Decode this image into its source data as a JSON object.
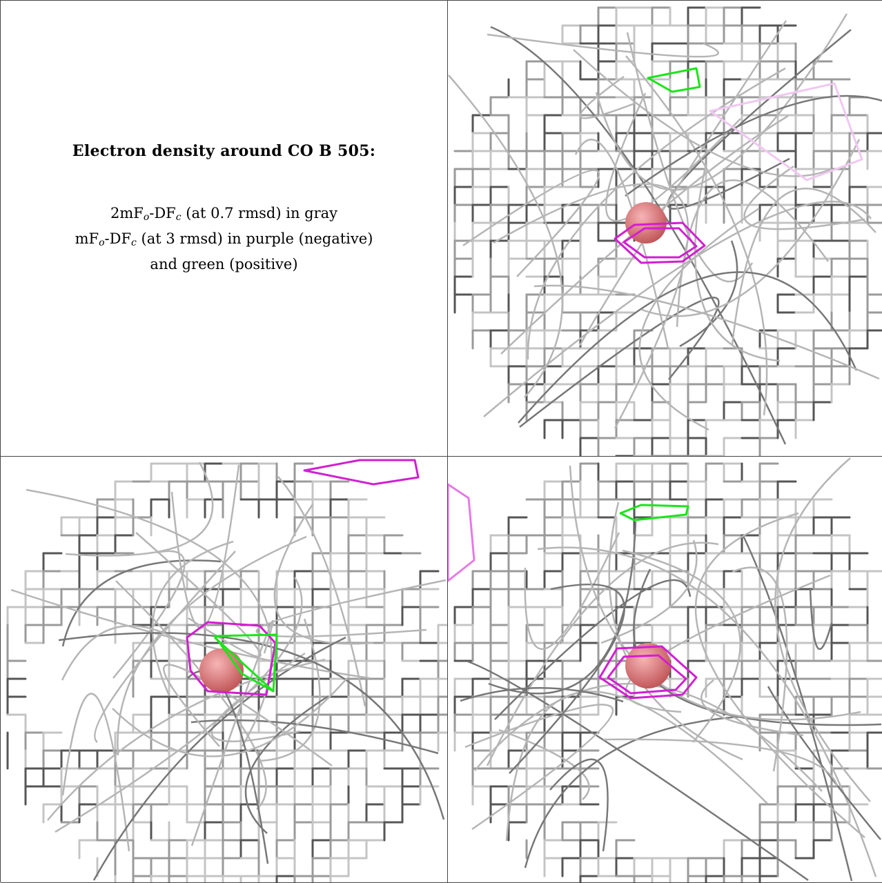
{
  "caption": {
    "title": "Electron density around CO B 505:",
    "line1": {
      "prefix": "2mF",
      "sub1": "o",
      "mid": "-DF",
      "sub2": "c",
      "suffix": " (at 0.7 rmsd) in gray"
    },
    "line2": {
      "prefix": "mF",
      "sub1": "o",
      "mid": "-DF",
      "sub2": "c",
      "suffix": " (at 3 rmsd) in purple (negative)"
    },
    "line3": "and green (positive)"
  },
  "colors": {
    "mesh_gray": "#9a9a9a",
    "mesh_dark": "#555555",
    "negative": "#d21ed2",
    "positive": "#19e619",
    "atom": "#e0787a"
  },
  "panels": [
    {
      "name": "view-top-right"
    },
    {
      "name": "view-bottom-left"
    },
    {
      "name": "view-bottom-right"
    }
  ]
}
